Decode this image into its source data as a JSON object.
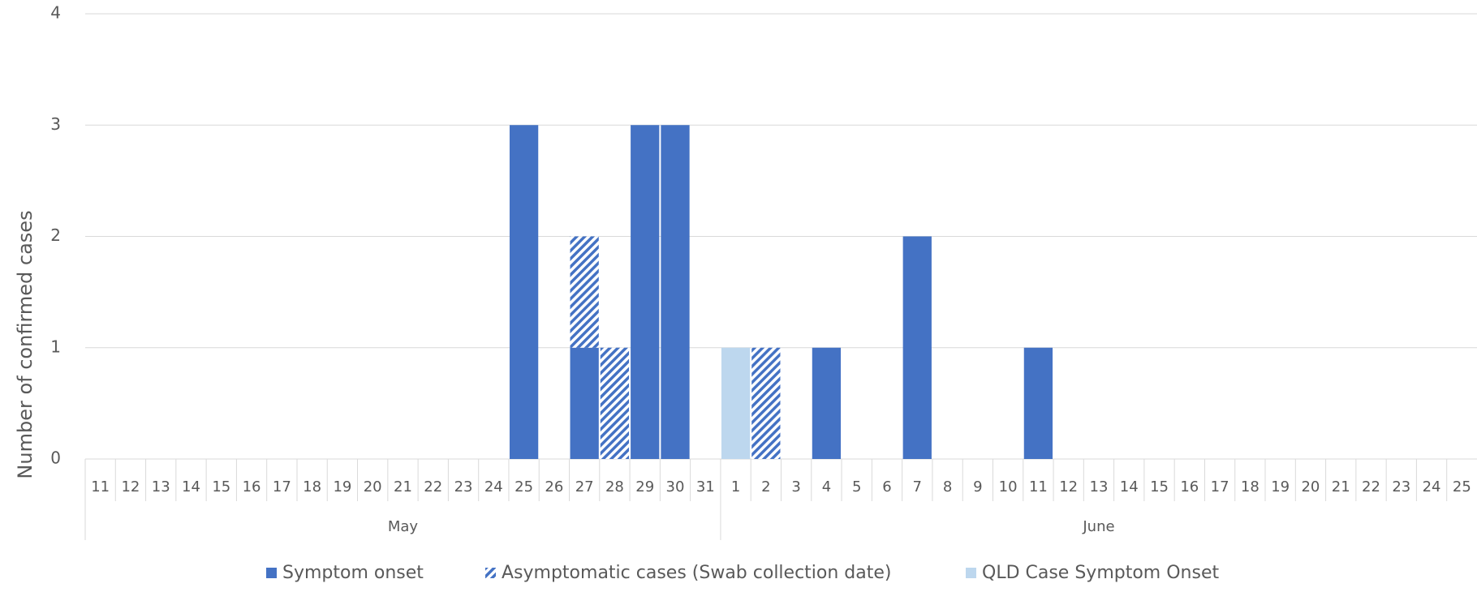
{
  "chart_data": {
    "type": "stacked_bar",
    "y_label": "Number of confirmed cases",
    "category_groups": [
      {
        "name": "May",
        "categories": [
          "11",
          "12",
          "13",
          "14",
          "15",
          "16",
          "17",
          "18",
          "19",
          "20",
          "21",
          "22",
          "23",
          "24",
          "25",
          "26",
          "27",
          "28",
          "29",
          "30",
          "31"
        ]
      },
      {
        "name": "June",
        "categories": [
          "1",
          "2",
          "3",
          "4",
          "5",
          "6",
          "7",
          "8",
          "9",
          "10",
          "11",
          "12",
          "13",
          "14",
          "15",
          "16",
          "17",
          "18",
          "19",
          "20",
          "21",
          "22",
          "23",
          "24",
          "25"
        ]
      }
    ],
    "series": [
      {
        "name": "Symptom onset",
        "color": "#4472c4",
        "pattern": "solid",
        "values": [
          0,
          0,
          0,
          0,
          0,
          0,
          0,
          0,
          0,
          0,
          0,
          0,
          0,
          0,
          3,
          0,
          1,
          0,
          3,
          3,
          0,
          0,
          0,
          0,
          1,
          0,
          0,
          2,
          0,
          0,
          0,
          1,
          0,
          0,
          0,
          0,
          0,
          0,
          0,
          0,
          0,
          0,
          0,
          0,
          0,
          0
        ]
      },
      {
        "name": "Asymptomatic cases (Swab collection date)",
        "color": "#4472c4",
        "pattern": "hatch",
        "values": [
          0,
          0,
          0,
          0,
          0,
          0,
          0,
          0,
          0,
          0,
          0,
          0,
          0,
          0,
          0,
          0,
          1,
          1,
          0,
          0,
          0,
          0,
          1,
          0,
          0,
          0,
          0,
          0,
          0,
          0,
          0,
          0,
          0,
          0,
          0,
          0,
          0,
          0,
          0,
          0,
          0,
          0,
          0,
          0,
          0,
          0
        ]
      },
      {
        "name": "QLD Case Symptom Onset",
        "color": "#bdd7ee",
        "pattern": "solid",
        "values": [
          0,
          0,
          0,
          0,
          0,
          0,
          0,
          0,
          0,
          0,
          0,
          0,
          0,
          0,
          0,
          0,
          0,
          0,
          0,
          0,
          0,
          1,
          0,
          0,
          0,
          0,
          0,
          0,
          0,
          0,
          0,
          0,
          0,
          0,
          0,
          0,
          0,
          0,
          0,
          0,
          0,
          0,
          0,
          0,
          0,
          0
        ]
      }
    ],
    "ylim": [
      0,
      4
    ],
    "yticks": [
      0,
      1,
      2,
      3,
      4
    ],
    "grid": true,
    "legend": "bottom"
  }
}
